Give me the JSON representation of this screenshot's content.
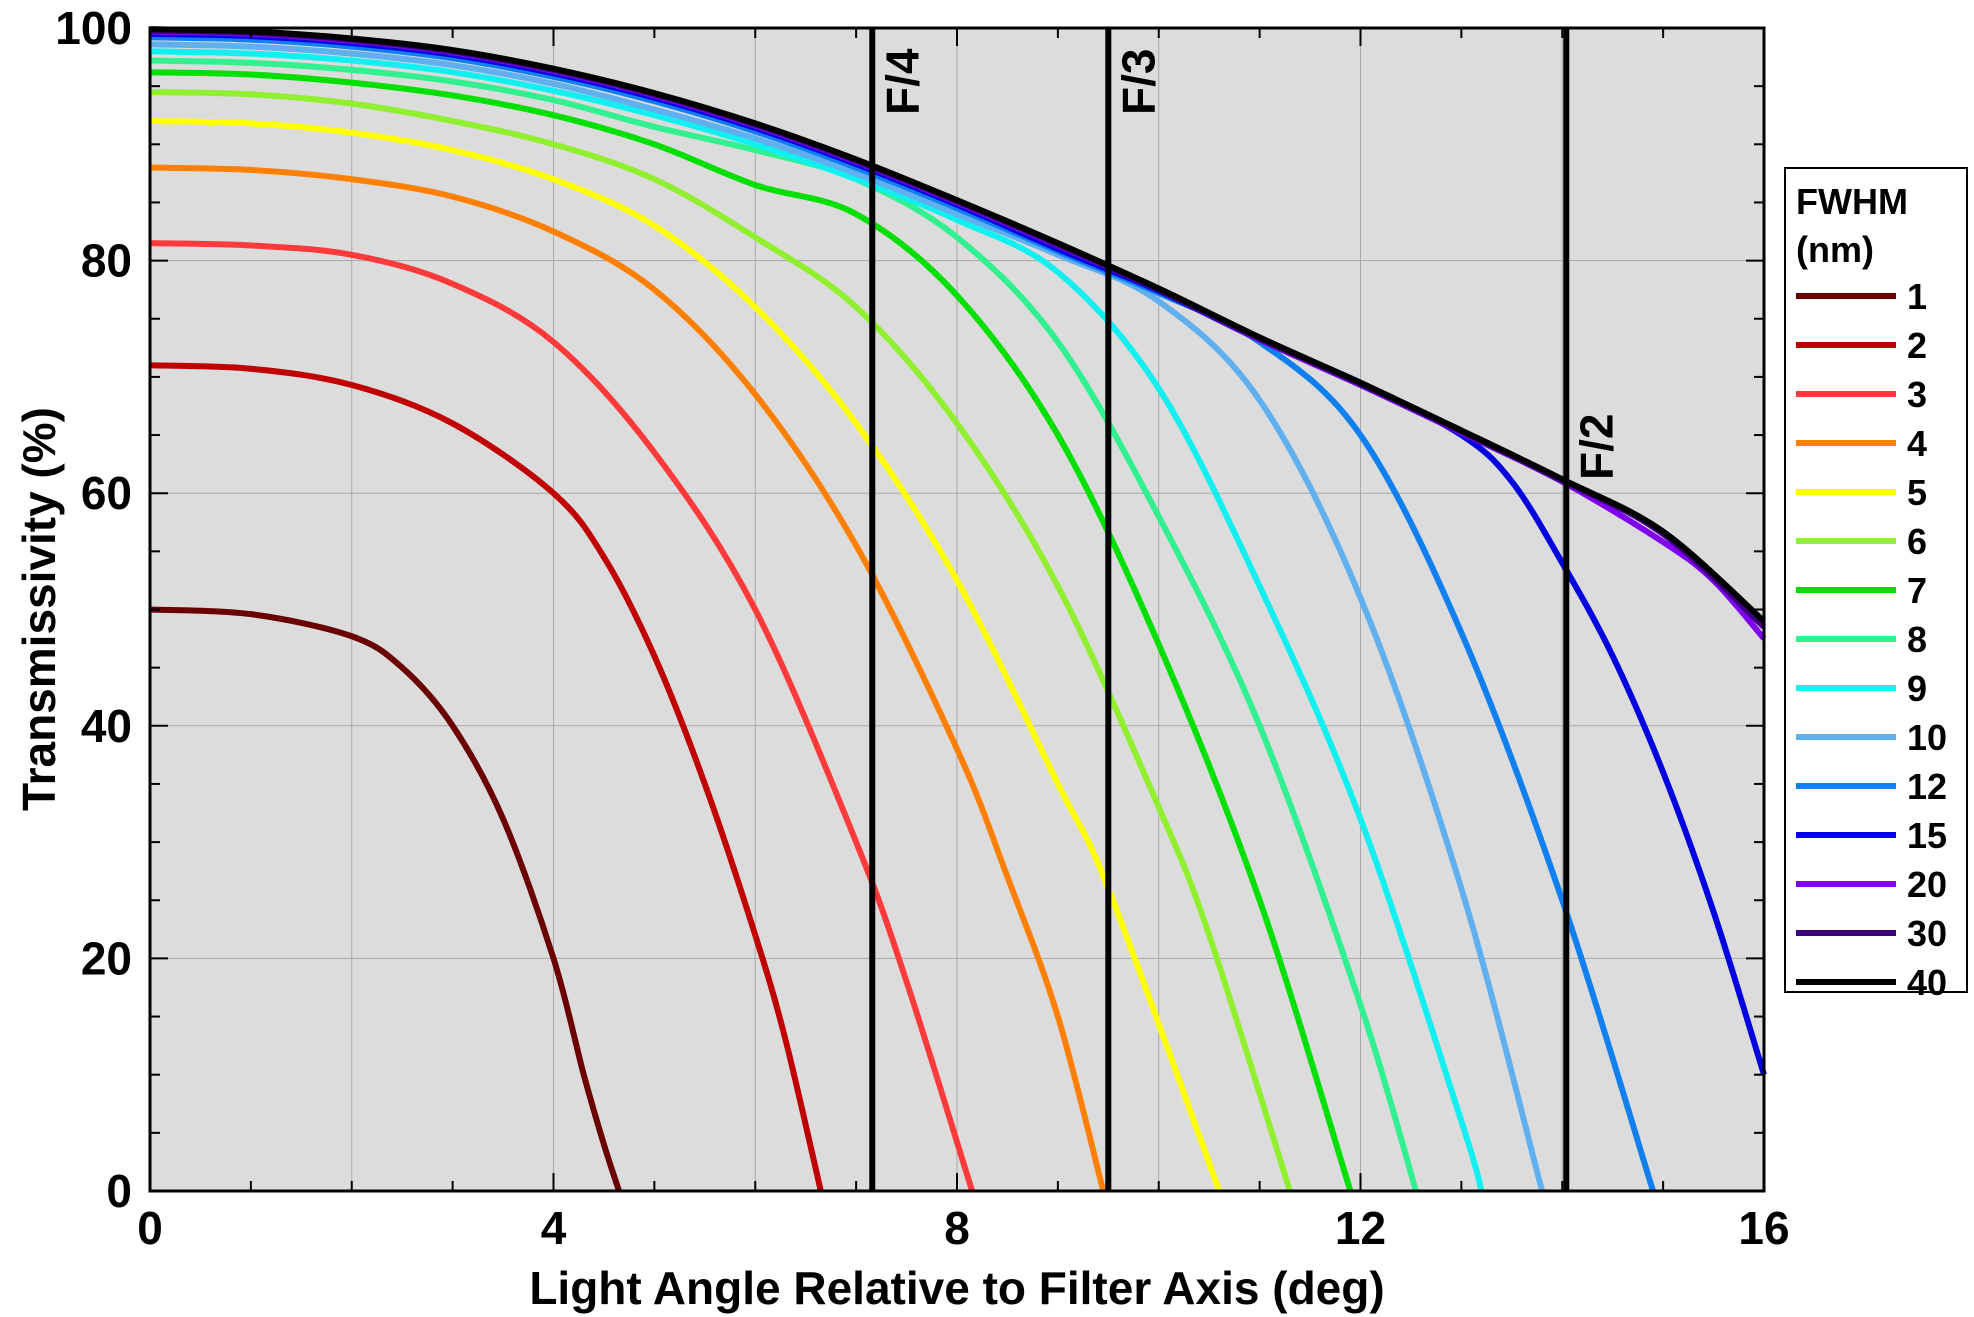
{
  "chart_data": {
    "type": "line",
    "xlabel": "Light Angle Relative to Filter Axis (deg)",
    "ylabel": "Transmissivity (%)",
    "xlim": [
      0,
      16
    ],
    "ylim": [
      0,
      100
    ],
    "xticks": [
      "0",
      "4",
      "8",
      "12",
      "16"
    ],
    "yticks": [
      "0",
      "20",
      "40",
      "60",
      "80",
      "100"
    ],
    "grid": true,
    "background": "#dcdcdc",
    "legend": {
      "position": "right",
      "title_line1": "FWHM",
      "title_line2": "(nm)"
    },
    "f_lines": [
      {
        "label": "F/4",
        "x": 7.16
      },
      {
        "label": "F/3",
        "x": 9.5
      },
      {
        "label": "F/2",
        "x": 14.04
      }
    ],
    "series": [
      {
        "name": "1",
        "color": "#6b0000",
        "x": [
          0,
          1,
          2,
          2.5,
          3,
          3.5,
          4,
          4.3,
          4.5,
          4.65
        ],
        "y": [
          50,
          49.6,
          47.7,
          45,
          40,
          32,
          20,
          10,
          4,
          0
        ]
      },
      {
        "name": "2",
        "color": "#c00000",
        "x": [
          0,
          1,
          2,
          3,
          4,
          4.5,
          5,
          5.5,
          6,
          6.3,
          6.65
        ],
        "y": [
          71,
          70.7,
          69.3,
          66,
          60,
          54.5,
          46,
          35,
          22,
          13,
          0
        ]
      },
      {
        "name": "3",
        "color": "#ff3a3a",
        "x": [
          0,
          1,
          2,
          3,
          4,
          5,
          6,
          7,
          7.5,
          8.15
        ],
        "y": [
          81.5,
          81.3,
          80.5,
          78,
          73,
          63.5,
          50,
          30,
          18,
          0
        ]
      },
      {
        "name": "4",
        "color": "#ff8000",
        "x": [
          0,
          1,
          2,
          3,
          4,
          5,
          6,
          7,
          8,
          8.5,
          9,
          9.45
        ],
        "y": [
          88,
          87.8,
          87,
          85.5,
          82.5,
          77.5,
          68.5,
          55.5,
          38,
          27,
          15,
          0
        ]
      },
      {
        "name": "5",
        "color": "#ffff00",
        "x": [
          0,
          1,
          2,
          3,
          4,
          5,
          6,
          7,
          8,
          9,
          9.5,
          10.6
        ],
        "y": [
          92,
          91.8,
          91,
          89.5,
          87,
          83,
          76,
          66,
          52.5,
          35,
          26,
          0
        ]
      },
      {
        "name": "6",
        "color": "#90f030",
        "x": [
          0,
          1,
          2,
          3,
          4,
          5,
          6,
          7,
          8,
          9,
          10,
          10.5,
          11.3
        ],
        "y": [
          94.5,
          94.3,
          93.5,
          92,
          90,
          87,
          82,
          76,
          66,
          52,
          33,
          22,
          0
        ]
      },
      {
        "name": "7",
        "color": "#00e000",
        "x": [
          0,
          1,
          2,
          3,
          4,
          5,
          6,
          7,
          8,
          9,
          10,
          11,
          11.9
        ],
        "y": [
          96.2,
          96,
          95.3,
          94.2,
          92.5,
          90,
          86.5,
          84,
          77,
          65,
          47,
          25,
          0
        ]
      },
      {
        "name": "8",
        "color": "#30f090",
        "x": [
          0,
          1,
          2,
          3,
          4,
          5,
          6,
          7,
          8,
          9,
          10,
          11,
          12,
          12.55
        ],
        "y": [
          97.2,
          97,
          96.4,
          95.4,
          93.8,
          91.5,
          89.5,
          87,
          82,
          73,
          58,
          40,
          16,
          0
        ]
      },
      {
        "name": "9",
        "color": "#10f0f0",
        "x": [
          0,
          1,
          2,
          3,
          4,
          5,
          6,
          7,
          8,
          9,
          10,
          11,
          12,
          13,
          13.2
        ],
        "y": [
          98,
          97.8,
          97.2,
          96.2,
          94.6,
          92.5,
          90,
          87,
          83.5,
          79,
          69,
          52,
          32,
          6,
          0
        ]
      },
      {
        "name": "10",
        "color": "#60b0f0",
        "x": [
          0,
          1,
          2,
          3,
          4,
          5,
          6,
          7,
          8,
          9,
          10,
          11,
          12,
          13,
          13.8
        ],
        "y": [
          98.6,
          98.4,
          97.8,
          96.8,
          95.2,
          93,
          90.5,
          87.5,
          84,
          80.5,
          76.5,
          68,
          51,
          26,
          0
        ]
      },
      {
        "name": "12",
        "color": "#1080f0",
        "x": [
          0,
          1,
          2,
          3,
          4,
          5,
          6,
          7,
          8,
          9,
          10,
          11,
          12,
          13,
          14,
          14.9
        ],
        "y": [
          99.2,
          99,
          98.4,
          97.4,
          95.8,
          93.7,
          91.1,
          88,
          84.5,
          80.8,
          77.2,
          73,
          65,
          48,
          25,
          0
        ]
      },
      {
        "name": "15",
        "color": "#0000e0",
        "x": [
          0,
          1,
          2,
          3,
          4,
          5,
          6,
          7,
          8,
          9,
          10,
          11,
          12,
          13,
          13.5,
          14,
          14.5,
          15,
          15.5,
          16
        ],
        "y": [
          99.5,
          99.3,
          98.7,
          97.7,
          96.1,
          94,
          91.4,
          88.3,
          84.8,
          81,
          77.4,
          73.2,
          69.5,
          65,
          61,
          54,
          46,
          36,
          24,
          10
        ]
      },
      {
        "name": "20",
        "color": "#8000f0",
        "x": [
          0,
          1,
          2,
          3,
          4,
          5,
          6,
          7,
          8,
          9,
          10,
          11,
          12,
          13,
          14,
          15,
          15.5,
          16
        ],
        "y": [
          99.7,
          99.5,
          98.9,
          97.9,
          96.3,
          94.2,
          91.6,
          88.5,
          85,
          81.3,
          77.5,
          73.2,
          69.3,
          65.2,
          61,
          55.8,
          52.5,
          47.5
        ]
      },
      {
        "name": "30",
        "color": "#3c0080",
        "x": [
          0,
          1,
          2,
          3,
          4,
          5,
          6,
          7,
          8,
          9,
          10,
          11,
          12,
          13,
          14,
          15,
          16
        ],
        "y": [
          99.8,
          99.6,
          99,
          98,
          96.4,
          94.3,
          91.7,
          88.6,
          85.1,
          81.4,
          77.5,
          73.3,
          69.4,
          65.3,
          61.1,
          56.5,
          48.5
        ]
      },
      {
        "name": "40",
        "color": "#000000",
        "x": [
          0,
          1,
          2,
          3,
          4,
          5,
          6,
          7,
          8,
          9,
          10,
          11,
          12,
          13,
          14,
          15,
          16
        ],
        "y": [
          99.9,
          99.7,
          99.1,
          98.1,
          96.5,
          94.4,
          91.8,
          88.7,
          85.2,
          81.5,
          77.6,
          73.4,
          69.5,
          65.4,
          61.2,
          56.7,
          49
        ]
      }
    ]
  }
}
